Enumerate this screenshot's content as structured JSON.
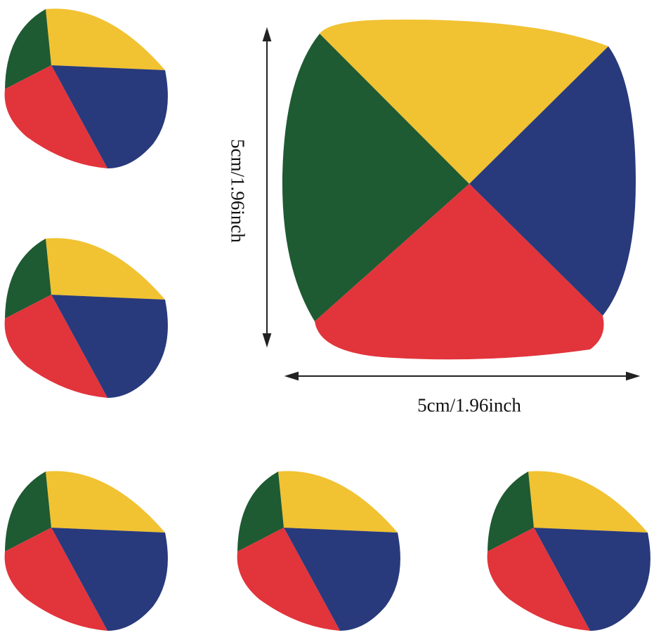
{
  "dimensions": {
    "height_label": "5cm/1.96inch",
    "width_label": "5cm/1.96inch"
  },
  "colors": {
    "yellow": "#f1c232",
    "green": "#1e5a32",
    "blue": "#283a7c",
    "red": "#e2343b",
    "arrow": "#222222"
  },
  "small_ball_count": 5
}
